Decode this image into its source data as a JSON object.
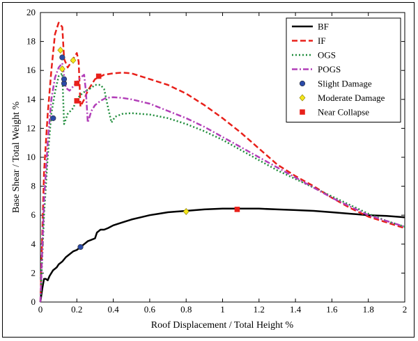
{
  "chart_data": {
    "type": "line",
    "title": "",
    "xlabel": "Roof Displacement / Total Height %",
    "ylabel": "Base Shear / Total Weight %",
    "xlim": [
      0,
      2
    ],
    "ylim": [
      0,
      20
    ],
    "xticks": [
      0,
      0.2,
      0.4,
      0.6,
      0.8,
      1,
      1.2,
      1.4,
      1.6,
      1.8,
      2
    ],
    "yticks": [
      0,
      2,
      4,
      6,
      8,
      10,
      12,
      14,
      16,
      18,
      20
    ],
    "grid": false,
    "legend_position": "top-right",
    "series": [
      {
        "name": "BF",
        "color": "#000000",
        "style": "solid",
        "points": [
          [
            0,
            0
          ],
          [
            0.01,
            0.9
          ],
          [
            0.02,
            1.6
          ],
          [
            0.03,
            1.6
          ],
          [
            0.04,
            1.5
          ],
          [
            0.05,
            1.8
          ],
          [
            0.06,
            2.0
          ],
          [
            0.07,
            2.2
          ],
          [
            0.08,
            2.3
          ],
          [
            0.09,
            2.4
          ],
          [
            0.1,
            2.6
          ],
          [
            0.12,
            2.8
          ],
          [
            0.14,
            3.1
          ],
          [
            0.16,
            3.3
          ],
          [
            0.18,
            3.5
          ],
          [
            0.2,
            3.6
          ],
          [
            0.22,
            3.8
          ],
          [
            0.24,
            4.0
          ],
          [
            0.26,
            4.2
          ],
          [
            0.28,
            4.3
          ],
          [
            0.3,
            4.4
          ],
          [
            0.31,
            4.8
          ],
          [
            0.33,
            5.0
          ],
          [
            0.35,
            5.0
          ],
          [
            0.37,
            5.1
          ],
          [
            0.4,
            5.3
          ],
          [
            0.45,
            5.5
          ],
          [
            0.5,
            5.7
          ],
          [
            0.55,
            5.85
          ],
          [
            0.6,
            6.0
          ],
          [
            0.65,
            6.1
          ],
          [
            0.7,
            6.2
          ],
          [
            0.8,
            6.3
          ],
          [
            0.9,
            6.4
          ],
          [
            1.0,
            6.45
          ],
          [
            1.1,
            6.45
          ],
          [
            1.2,
            6.45
          ],
          [
            1.3,
            6.4
          ],
          [
            1.4,
            6.35
          ],
          [
            1.5,
            6.3
          ],
          [
            1.6,
            6.2
          ],
          [
            1.7,
            6.1
          ],
          [
            1.8,
            6.0
          ],
          [
            1.9,
            5.95
          ],
          [
            2.0,
            5.85
          ]
        ]
      },
      {
        "name": "IF",
        "color": "#e8201a",
        "style": "dashed",
        "points": [
          [
            0,
            0
          ],
          [
            0.02,
            9
          ],
          [
            0.04,
            13
          ],
          [
            0.06,
            16
          ],
          [
            0.08,
            18.5
          ],
          [
            0.1,
            19.3
          ],
          [
            0.12,
            19.0
          ],
          [
            0.13,
            16.8
          ],
          [
            0.15,
            16.2
          ],
          [
            0.17,
            16.6
          ],
          [
            0.19,
            17.0
          ],
          [
            0.2,
            17.2
          ],
          [
            0.21,
            16.6
          ],
          [
            0.22,
            13.5
          ],
          [
            0.24,
            14.0
          ],
          [
            0.26,
            14.6
          ],
          [
            0.28,
            15.0
          ],
          [
            0.3,
            15.4
          ],
          [
            0.35,
            15.7
          ],
          [
            0.4,
            15.8
          ],
          [
            0.45,
            15.85
          ],
          [
            0.5,
            15.8
          ],
          [
            0.6,
            15.4
          ],
          [
            0.7,
            15.0
          ],
          [
            0.8,
            14.4
          ],
          [
            0.9,
            13.6
          ],
          [
            1.0,
            12.7
          ],
          [
            1.1,
            11.7
          ],
          [
            1.2,
            10.6
          ],
          [
            1.3,
            9.5
          ],
          [
            1.4,
            8.7
          ],
          [
            1.5,
            8.0
          ],
          [
            1.6,
            7.2
          ],
          [
            1.7,
            6.5
          ],
          [
            1.8,
            5.9
          ],
          [
            1.9,
            5.5
          ],
          [
            2.0,
            5.1
          ]
        ]
      },
      {
        "name": "OGS",
        "color": "#1e8c3a",
        "style": "dotted",
        "points": [
          [
            0,
            0
          ],
          [
            0.02,
            6
          ],
          [
            0.04,
            10
          ],
          [
            0.06,
            13
          ],
          [
            0.08,
            14.5
          ],
          [
            0.1,
            15.6
          ],
          [
            0.12,
            15.8
          ],
          [
            0.13,
            12.3
          ],
          [
            0.15,
            13.0
          ],
          [
            0.18,
            13.4
          ],
          [
            0.2,
            14.0
          ],
          [
            0.22,
            14.3
          ],
          [
            0.25,
            14.6
          ],
          [
            0.28,
            14.8
          ],
          [
            0.3,
            15.0
          ],
          [
            0.33,
            15.0
          ],
          [
            0.35,
            14.7
          ],
          [
            0.37,
            13.5
          ],
          [
            0.39,
            12.4
          ],
          [
            0.41,
            12.8
          ],
          [
            0.45,
            13.0
          ],
          [
            0.5,
            13.05
          ],
          [
            0.6,
            12.95
          ],
          [
            0.7,
            12.7
          ],
          [
            0.8,
            12.3
          ],
          [
            0.9,
            11.8
          ],
          [
            1.0,
            11.2
          ],
          [
            1.1,
            10.5
          ],
          [
            1.2,
            9.8
          ],
          [
            1.3,
            9.1
          ],
          [
            1.4,
            8.5
          ],
          [
            1.5,
            7.9
          ],
          [
            1.6,
            7.3
          ],
          [
            1.7,
            6.7
          ],
          [
            1.8,
            6.1
          ],
          [
            1.9,
            5.6
          ],
          [
            2.0,
            5.2
          ]
        ]
      },
      {
        "name": "POGS",
        "color": "#b23eb8",
        "style": "dashdot",
        "points": [
          [
            0,
            0
          ],
          [
            0.02,
            7
          ],
          [
            0.04,
            11
          ],
          [
            0.06,
            14
          ],
          [
            0.08,
            15.5
          ],
          [
            0.1,
            16.2
          ],
          [
            0.12,
            16.5
          ],
          [
            0.14,
            14.8
          ],
          [
            0.16,
            14.6
          ],
          [
            0.18,
            14.9
          ],
          [
            0.2,
            15.2
          ],
          [
            0.22,
            15.5
          ],
          [
            0.24,
            15.7
          ],
          [
            0.25,
            14.5
          ],
          [
            0.26,
            12.4
          ],
          [
            0.28,
            13.2
          ],
          [
            0.3,
            13.6
          ],
          [
            0.33,
            13.9
          ],
          [
            0.36,
            14.1
          ],
          [
            0.4,
            14.15
          ],
          [
            0.45,
            14.1
          ],
          [
            0.5,
            14.0
          ],
          [
            0.6,
            13.7
          ],
          [
            0.7,
            13.2
          ],
          [
            0.8,
            12.7
          ],
          [
            0.9,
            12.1
          ],
          [
            1.0,
            11.4
          ],
          [
            1.1,
            10.7
          ],
          [
            1.2,
            10.0
          ],
          [
            1.3,
            9.3
          ],
          [
            1.4,
            8.6
          ],
          [
            1.5,
            7.9
          ],
          [
            1.6,
            7.2
          ],
          [
            1.7,
            6.6
          ],
          [
            1.8,
            6.0
          ],
          [
            1.9,
            5.6
          ],
          [
            2.0,
            5.2
          ]
        ]
      }
    ],
    "markers": [
      {
        "name": "Slight Damage",
        "shape": "circle",
        "color": "#2a4aa8",
        "points": [
          [
            0.22,
            3.8
          ],
          [
            0.07,
            12.7
          ],
          [
            0.13,
            15.1
          ],
          [
            0.13,
            15.4
          ],
          [
            0.12,
            16.9
          ]
        ]
      },
      {
        "name": "Moderate Damage",
        "shape": "diamond",
        "color": "#f5e71a",
        "points": [
          [
            0.8,
            6.25
          ],
          [
            0.11,
            17.4
          ],
          [
            0.18,
            16.7
          ],
          [
            0.12,
            16.1
          ]
        ]
      },
      {
        "name": "Near Collapse",
        "shape": "square",
        "color": "#e8201a",
        "points": [
          [
            1.08,
            6.4
          ],
          [
            0.32,
            15.6
          ],
          [
            0.2,
            15.1
          ],
          [
            0.2,
            13.9
          ]
        ]
      }
    ]
  }
}
